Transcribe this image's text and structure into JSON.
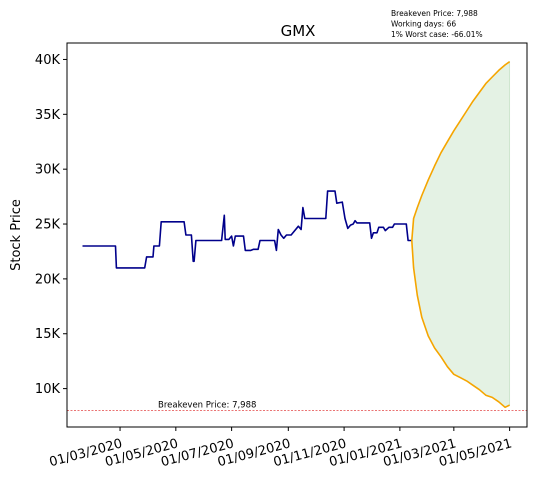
{
  "chart_data": {
    "type": "line",
    "title": "GMX",
    "ylabel": "Stock Price",
    "xlabel": "",
    "ylim": [
      6500,
      41500
    ],
    "xlim": [
      "2020-01-03",
      "2021-05-20"
    ],
    "y_ticks": [
      10000,
      15000,
      20000,
      25000,
      30000,
      35000,
      40000
    ],
    "y_tick_labels": [
      "10K",
      "15K",
      "20K",
      "25K",
      "30K",
      "35K",
      "40K"
    ],
    "x_ticks": [
      "2020-03-01",
      "2020-05-01",
      "2020-07-01",
      "2020-09-01",
      "2020-11-01",
      "2021-01-01",
      "2021-03-01",
      "2021-05-01"
    ],
    "x_tick_labels": [
      "01/03/2020",
      "01/05/2020",
      "01/07/2020",
      "01/09/2020",
      "01/11/2020",
      "01/01/2021",
      "01/03/2021",
      "01/05/2021"
    ],
    "annotations": [
      "Breakeven Price: 7,988",
      "Working days: 66",
      "1% Worst case: -66.01%"
    ],
    "breakeven": {
      "value": 7988,
      "label": "Breakeven Price: 7,988",
      "color": "#dd2222"
    },
    "series": [
      {
        "color": "#00008b",
        "points": [
          [
            "2020-01-20",
            23000
          ],
          [
            "2020-02-25",
            23000
          ],
          [
            "2020-02-26",
            21000
          ],
          [
            "2020-03-28",
            21000
          ],
          [
            "2020-03-30",
            22000
          ],
          [
            "2020-04-06",
            22000
          ],
          [
            "2020-04-07",
            23000
          ],
          [
            "2020-04-13",
            23000
          ],
          [
            "2020-04-15",
            25200
          ],
          [
            "2020-05-10",
            25200
          ],
          [
            "2020-05-12",
            24000
          ],
          [
            "2020-05-18",
            24000
          ],
          [
            "2020-05-20",
            21600
          ],
          [
            "2020-05-21",
            21600
          ],
          [
            "2020-05-23",
            23500
          ],
          [
            "2020-06-15",
            23500
          ],
          [
            "2020-06-20",
            23500
          ],
          [
            "2020-06-23",
            25800
          ],
          [
            "2020-06-24",
            23600
          ],
          [
            "2020-06-28",
            23600
          ],
          [
            "2020-07-01",
            23900
          ],
          [
            "2020-07-03",
            23000
          ],
          [
            "2020-07-05",
            23900
          ],
          [
            "2020-07-14",
            23900
          ],
          [
            "2020-07-16",
            22600
          ],
          [
            "2020-07-22",
            22600
          ],
          [
            "2020-07-25",
            22700
          ],
          [
            "2020-07-30",
            22700
          ],
          [
            "2020-08-01",
            23500
          ],
          [
            "2020-08-17",
            23500
          ],
          [
            "2020-08-19",
            22600
          ],
          [
            "2020-08-21",
            24500
          ],
          [
            "2020-08-24",
            24000
          ],
          [
            "2020-08-27",
            23700
          ],
          [
            "2020-08-30",
            24000
          ],
          [
            "2020-09-04",
            24000
          ],
          [
            "2020-09-07",
            24300
          ],
          [
            "2020-09-12",
            24800
          ],
          [
            "2020-09-15",
            24500
          ],
          [
            "2020-09-17",
            26500
          ],
          [
            "2020-09-19",
            25500
          ],
          [
            "2020-10-12",
            25500
          ],
          [
            "2020-10-14",
            28000
          ],
          [
            "2020-10-22",
            28000
          ],
          [
            "2020-10-24",
            26900
          ],
          [
            "2020-10-30",
            27000
          ],
          [
            "2020-11-02",
            25500
          ],
          [
            "2020-11-05",
            24600
          ],
          [
            "2020-11-08",
            24900
          ],
          [
            "2020-11-11",
            25000
          ],
          [
            "2020-11-13",
            25300
          ],
          [
            "2020-11-15",
            25100
          ],
          [
            "2020-11-29",
            25100
          ],
          [
            "2020-12-01",
            23700
          ],
          [
            "2020-12-03",
            24200
          ],
          [
            "2020-12-07",
            24200
          ],
          [
            "2020-12-09",
            24700
          ],
          [
            "2020-12-14",
            24700
          ],
          [
            "2020-12-16",
            24400
          ],
          [
            "2020-12-20",
            24700
          ],
          [
            "2020-12-24",
            24700
          ],
          [
            "2020-12-26",
            25000
          ],
          [
            "2021-01-08",
            25000
          ],
          [
            "2021-01-10",
            23500
          ],
          [
            "2021-01-14",
            23500
          ]
        ]
      },
      {
        "color": "#f5a500",
        "points": [
          [
            "2021-01-14",
            23500
          ],
          [
            "2021-01-16",
            25500
          ],
          [
            "2021-01-20",
            26500
          ],
          [
            "2021-01-25",
            27600
          ],
          [
            "2021-02-01",
            29000
          ],
          [
            "2021-02-08",
            30300
          ],
          [
            "2021-02-15",
            31500
          ],
          [
            "2021-02-22",
            32500
          ],
          [
            "2021-03-01",
            33500
          ],
          [
            "2021-03-08",
            34400
          ],
          [
            "2021-03-15",
            35300
          ],
          [
            "2021-03-22",
            36200
          ],
          [
            "2021-03-29",
            37000
          ],
          [
            "2021-04-05",
            37800
          ],
          [
            "2021-04-12",
            38400
          ],
          [
            "2021-04-19",
            39000
          ],
          [
            "2021-04-26",
            39500
          ],
          [
            "2021-05-01",
            39800
          ]
        ]
      },
      {
        "color": "#f5a500",
        "points": [
          [
            "2021-01-14",
            23500
          ],
          [
            "2021-01-16",
            21000
          ],
          [
            "2021-01-20",
            18500
          ],
          [
            "2021-01-25",
            16500
          ],
          [
            "2021-02-01",
            14800
          ],
          [
            "2021-02-08",
            13700
          ],
          [
            "2021-02-15",
            12900
          ],
          [
            "2021-02-22",
            12000
          ],
          [
            "2021-03-01",
            11300
          ],
          [
            "2021-03-08",
            11000
          ],
          [
            "2021-03-15",
            10700
          ],
          [
            "2021-03-22",
            10300
          ],
          [
            "2021-03-29",
            9900
          ],
          [
            "2021-04-05",
            9400
          ],
          [
            "2021-04-12",
            9200
          ],
          [
            "2021-04-19",
            8800
          ],
          [
            "2021-04-26",
            8300
          ],
          [
            "2021-05-01",
            8500
          ]
        ]
      }
    ],
    "band_color": "#e4f2e4"
  }
}
